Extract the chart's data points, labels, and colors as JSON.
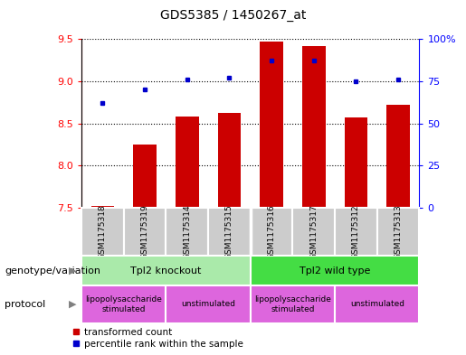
{
  "title": "GDS5385 / 1450267_at",
  "samples": [
    "GSM1175318",
    "GSM1175319",
    "GSM1175314",
    "GSM1175315",
    "GSM1175316",
    "GSM1175317",
    "GSM1175312",
    "GSM1175313"
  ],
  "transformed_count": [
    7.52,
    8.25,
    8.58,
    8.62,
    9.47,
    9.42,
    8.57,
    8.72
  ],
  "percentile_rank": [
    62,
    70,
    76,
    77,
    87,
    87,
    75,
    76
  ],
  "bar_bottom": 7.5,
  "ylim_left": [
    7.5,
    9.5
  ],
  "ylim_right": [
    0,
    100
  ],
  "yticks_left": [
    7.5,
    8.0,
    8.5,
    9.0,
    9.5
  ],
  "yticks_right": [
    0,
    25,
    50,
    75,
    100
  ],
  "bar_color": "#cc0000",
  "dot_color": "#0000cc",
  "genotype_groups": [
    {
      "label": "Tpl2 knockout",
      "start": 0,
      "end": 3,
      "color": "#aaeaaa"
    },
    {
      "label": "Tpl2 wild type",
      "start": 4,
      "end": 7,
      "color": "#44dd44"
    }
  ],
  "protocol_groups": [
    {
      "label": "lipopolysaccharide\nstimulated",
      "start": 0,
      "end": 1,
      "color": "#dd66dd"
    },
    {
      "label": "unstimulated",
      "start": 2,
      "end": 3,
      "color": "#dd66dd"
    },
    {
      "label": "lipopolysaccharide\nstimulated",
      "start": 4,
      "end": 5,
      "color": "#dd66dd"
    },
    {
      "label": "unstimulated",
      "start": 6,
      "end": 7,
      "color": "#dd66dd"
    }
  ],
  "legend_bar_label": "transformed count",
  "legend_dot_label": "percentile rank within the sample",
  "genotype_label": "genotype/variation",
  "protocol_label": "protocol",
  "sample_bg": "#cccccc",
  "fig_width": 5.15,
  "fig_height": 3.93,
  "dpi": 100
}
